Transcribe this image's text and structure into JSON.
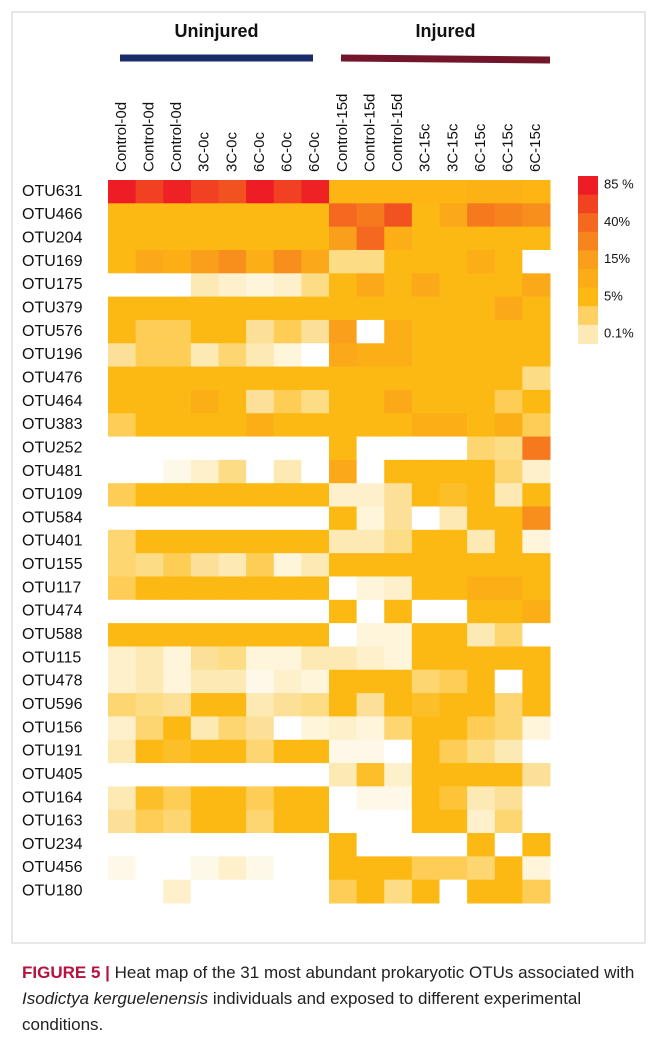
{
  "chart_data": {
    "type": "heatmap",
    "groups": [
      {
        "name": "Uninjured",
        "color": "#1b2a6b"
      },
      {
        "name": "Injured",
        "color": "#72172b"
      }
    ],
    "columns": [
      "Control-0d",
      "Control-0d",
      "Control-0d",
      "3C-0c",
      "3C-0c",
      "6C-0c",
      "6C-0c",
      "6C-0c",
      "Control-15d",
      "Control-15d",
      "Control-15d",
      "3C-15c",
      "3C-15c",
      "6C-15c",
      "6C-15c",
      "6C-15c"
    ],
    "rows": [
      "OTU631",
      "OTU466",
      "OTU204",
      "OTU169",
      "OTU175",
      "OTU379",
      "OTU576",
      "OTU196",
      "OTU476",
      "OTU464",
      "OTU383",
      "OTU252",
      "OTU481",
      "OTU109",
      "OTU584",
      "OTU401",
      "OTU155",
      "OTU117",
      "OTU474",
      "OTU588",
      "OTU115",
      "OTU478",
      "OTU596",
      "OTU156",
      "OTU191",
      "OTU405",
      "OTU164",
      "OTU163",
      "OTU234",
      "OTU456",
      "OTU180"
    ],
    "values": [
      [
        85,
        60,
        80,
        60,
        50,
        85,
        60,
        80,
        6,
        6,
        6,
        6,
        6,
        7,
        7,
        6
      ],
      [
        5,
        5,
        5,
        5,
        5,
        5,
        5,
        5,
        40,
        30,
        50,
        5,
        10,
        30,
        25,
        20
      ],
      [
        5,
        5,
        5,
        5,
        5,
        5,
        5,
        5,
        15,
        40,
        8,
        5,
        5,
        5,
        5,
        5
      ],
      [
        5,
        10,
        8,
        15,
        20,
        8,
        20,
        10,
        0.3,
        0.3,
        5,
        5,
        5,
        8,
        5,
        0
      ],
      [
        0,
        0,
        0,
        0.1,
        0.05,
        0.03,
        0.05,
        0.3,
        5,
        10,
        5,
        10,
        5,
        5,
        5,
        10
      ],
      [
        5,
        5,
        5,
        5,
        5,
        5,
        5,
        5,
        5,
        5,
        5,
        5,
        5,
        5,
        10,
        5
      ],
      [
        5,
        1,
        1,
        5,
        5,
        0.2,
        1,
        0.2,
        15,
        0,
        8,
        5,
        5,
        5,
        5,
        5
      ],
      [
        0.2,
        1,
        1,
        0.1,
        0.5,
        0.1,
        0.03,
        0,
        10,
        8,
        8,
        5,
        5,
        5,
        5,
        5
      ],
      [
        5,
        5,
        5,
        5,
        5,
        5,
        5,
        5,
        5,
        5,
        5,
        5,
        5,
        5,
        5,
        0.3
      ],
      [
        5,
        5,
        5,
        8,
        5,
        0.2,
        1,
        0.3,
        5,
        5,
        10,
        5,
        5,
        5,
        1,
        5
      ],
      [
        1,
        5,
        5,
        5,
        5,
        8,
        5,
        5,
        5,
        5,
        5,
        8,
        8,
        5,
        8,
        1
      ],
      [
        0,
        0,
        0,
        0,
        0,
        0,
        0,
        0,
        5,
        0,
        0,
        0,
        0,
        0.5,
        0.3,
        30
      ],
      [
        0,
        0,
        0.02,
        0.05,
        0.3,
        0,
        0.1,
        0,
        10,
        0,
        5,
        5,
        5,
        5,
        0.5,
        0.05
      ],
      [
        1,
        5,
        5,
        5,
        5,
        5,
        5,
        5,
        0.05,
        0.05,
        0.2,
        5,
        3,
        5,
        0.1,
        5
      ],
      [
        0,
        0,
        0,
        0,
        0,
        0,
        0,
        0,
        5,
        0.03,
        0.2,
        0,
        0.1,
        5,
        5,
        20
      ],
      [
        0.5,
        5,
        5,
        5,
        5,
        5,
        5,
        5,
        0.1,
        0.1,
        0.3,
        5,
        5,
        0.1,
        5,
        0.03
      ],
      [
        0.5,
        0.3,
        1,
        0.2,
        0.1,
        1,
        0.03,
        0.1,
        5,
        5,
        5,
        5,
        5,
        5,
        5,
        5
      ],
      [
        1,
        5,
        5,
        5,
        5,
        5,
        5,
        5,
        0,
        0.03,
        0.05,
        5,
        5,
        8,
        8,
        5
      ],
      [
        0,
        0,
        0,
        0,
        0,
        0,
        0,
        0,
        5,
        0,
        5,
        0,
        0,
        5,
        5,
        8
      ],
      [
        5,
        5,
        5,
        5,
        5,
        5,
        5,
        5,
        0,
        0.03,
        0.03,
        5,
        5,
        0.1,
        0.5,
        0
      ],
      [
        0.05,
        0.1,
        0.03,
        0.2,
        0.3,
        0.03,
        0.03,
        0.1,
        0.1,
        0.05,
        0.03,
        5,
        5,
        5,
        5,
        5
      ],
      [
        0.05,
        0.1,
        0.03,
        0.1,
        0.1,
        0.02,
        0.05,
        0.03,
        5,
        5,
        5,
        0.5,
        1,
        5,
        0,
        5
      ],
      [
        0.5,
        0.3,
        0.2,
        5,
        5,
        0.1,
        0.2,
        0.3,
        5,
        0.2,
        5,
        3,
        5,
        5,
        0.5,
        5
      ],
      [
        0.05,
        0.5,
        5,
        0.1,
        0.5,
        0.2,
        0,
        0.03,
        0.05,
        0.03,
        0.5,
        5,
        5,
        1,
        0.5,
        0.03
      ],
      [
        0.1,
        5,
        3,
        5,
        5,
        0.5,
        5,
        5,
        0.02,
        0.02,
        0,
        5,
        1,
        0.3,
        0.1,
        0
      ],
      [
        0,
        0,
        0,
        0,
        0,
        0,
        0,
        0,
        0.1,
        3,
        0.05,
        5,
        5,
        5,
        5,
        0.2
      ],
      [
        0.1,
        3,
        1,
        5,
        5,
        1,
        5,
        5,
        0,
        0.02,
        0.02,
        5,
        2,
        0.1,
        0.2,
        0
      ],
      [
        0.2,
        1,
        0.5,
        5,
        5,
        0.5,
        5,
        5,
        0,
        0,
        0,
        5,
        5,
        0.05,
        0.5,
        0
      ],
      [
        0,
        0,
        0,
        0,
        0,
        0,
        0,
        0,
        5,
        0,
        0,
        0,
        0,
        5,
        0,
        5
      ],
      [
        0.02,
        0,
        0,
        0.02,
        0.05,
        0.02,
        0,
        0,
        5,
        5,
        5,
        1,
        1,
        0.5,
        5,
        0.03
      ],
      [
        0,
        0,
        0.05,
        0,
        0,
        0,
        0,
        0,
        1,
        5,
        0.3,
        5,
        0,
        5,
        5,
        1
      ]
    ],
    "colorscale": [
      {
        "value": 85,
        "label": "85 %",
        "color": "#ee1c24"
      },
      {
        "value": 40,
        "label": "40%",
        "color": "#f4691f"
      },
      {
        "value": 15,
        "label": "15%",
        "color": "#fa9f1b"
      },
      {
        "value": 5,
        "label": "5%",
        "color": "#fdb913"
      },
      {
        "value": 0.1,
        "label": "0.1%",
        "color": "#fde9b3"
      }
    ]
  },
  "caption": {
    "label": "FIGURE 5 |",
    "text1": "Heat map of the 31 most abundant prokaryotic OTUs associated with",
    "species": "Isodictya kerguelenensis",
    "text2": "individuals and exposed to different experimental conditions."
  }
}
